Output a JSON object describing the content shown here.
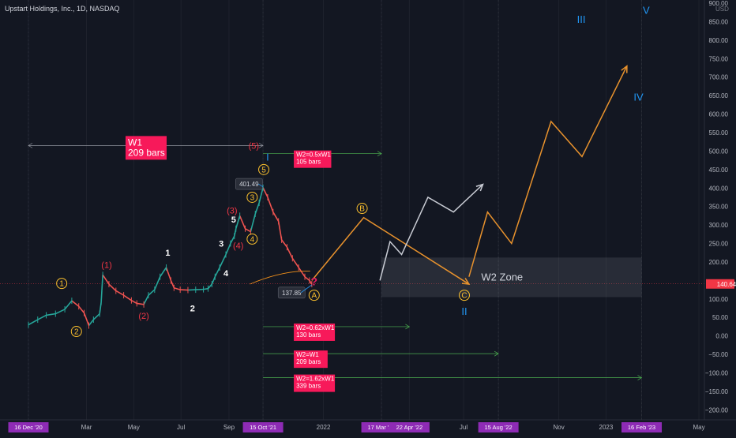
{
  "header": {
    "symbol_title": "Upstart Holdings, Inc., 1D, NASDAQ",
    "currency": "USD"
  },
  "chart_data": {
    "type": "line",
    "symbol": "Upstart Holdings, Inc.",
    "interval": "1D",
    "exchange": "NASDAQ",
    "current_price": "140.64",
    "y_axis": {
      "range": [
        -210,
        900
      ],
      "ticks": [
        {
          "v": 900,
          "label": "900.00"
        },
        {
          "v": 850,
          "label": "850.00"
        },
        {
          "v": 800,
          "label": "800.00"
        },
        {
          "v": 750,
          "label": "750.00"
        },
        {
          "v": 700,
          "label": "700.00"
        },
        {
          "v": 650,
          "label": "650.00"
        },
        {
          "v": 600,
          "label": "600.00"
        },
        {
          "v": 550,
          "label": "550.00"
        },
        {
          "v": 500,
          "label": "500.00"
        },
        {
          "v": 450,
          "label": "450.00"
        },
        {
          "v": 400,
          "label": "400.00"
        },
        {
          "v": 350,
          "label": "350.00"
        },
        {
          "v": 300,
          "label": "300.00"
        },
        {
          "v": 250,
          "label": "250.00"
        },
        {
          "v": 200,
          "label": "200.00"
        },
        {
          "v": 100,
          "label": "100.00"
        },
        {
          "v": 50,
          "label": "50.00"
        },
        {
          "v": 0,
          "label": "0.00"
        },
        {
          "v": -50,
          "label": "−50.00"
        },
        {
          "v": -100,
          "label": "−100.00"
        },
        {
          "v": -150,
          "label": "−150.00"
        },
        {
          "v": -200,
          "label": "−200.00"
        }
      ]
    },
    "x_axis": {
      "ticks": [
        {
          "d": "2020-12-16",
          "label": "16 Dec '20",
          "highlight": true
        },
        {
          "d": "2021-03-01",
          "label": "Mar"
        },
        {
          "d": "2021-05-01",
          "label": "May"
        },
        {
          "d": "2021-07-01",
          "label": "Jul"
        },
        {
          "d": "2021-09-01",
          "label": "Sep"
        },
        {
          "d": "2021-10-15",
          "label": "15 Oct '21",
          "highlight": true
        },
        {
          "d": "2022-01-01",
          "label": "2022"
        },
        {
          "d": "2022-03-17",
          "label": "17 Mar '22",
          "highlight": true
        },
        {
          "d": "2022-04-22",
          "label": "22 Apr '22",
          "highlight": true
        },
        {
          "d": "2022-07-01",
          "label": "Jul"
        },
        {
          "d": "2022-08-15",
          "label": "15 Aug '22",
          "highlight": true
        },
        {
          "d": "2022-11-01",
          "label": "Nov"
        },
        {
          "d": "2023-01-01",
          "label": "2023"
        },
        {
          "d": "2023-02-16",
          "label": "16 Feb '23",
          "highlight": true
        },
        {
          "d": "2023-05-01",
          "label": "May"
        }
      ]
    },
    "price_series": [
      [
        "2020-12-16",
        30
      ],
      [
        "2020-12-28",
        44
      ],
      [
        "2021-01-08",
        56
      ],
      [
        "2021-01-20",
        60
      ],
      [
        "2021-02-01",
        72
      ],
      [
        "2021-02-10",
        95
      ],
      [
        "2021-02-19",
        80
      ],
      [
        "2021-02-26",
        62
      ],
      [
        "2021-03-04",
        28
      ],
      [
        "2021-03-10",
        44
      ],
      [
        "2021-03-18",
        60
      ],
      [
        "2021-03-20",
        92
      ],
      [
        "2021-03-22",
        165
      ],
      [
        "2021-03-30",
        140
      ],
      [
        "2021-04-08",
        122
      ],
      [
        "2021-04-18",
        110
      ],
      [
        "2021-04-28",
        96
      ],
      [
        "2021-05-05",
        88
      ],
      [
        "2021-05-14",
        85
      ],
      [
        "2021-05-20",
        110
      ],
      [
        "2021-05-28",
        125
      ],
      [
        "2021-06-04",
        160
      ],
      [
        "2021-06-12",
        185
      ],
      [
        "2021-06-18",
        150
      ],
      [
        "2021-06-22",
        130
      ],
      [
        "2021-06-30",
        125
      ],
      [
        "2021-07-10",
        124
      ],
      [
        "2021-07-20",
        125
      ],
      [
        "2021-07-30",
        126
      ],
      [
        "2021-08-05",
        128
      ],
      [
        "2021-08-10",
        140
      ],
      [
        "2021-08-14",
        160
      ],
      [
        "2021-08-20",
        185
      ],
      [
        "2021-08-28",
        220
      ],
      [
        "2021-09-03",
        250
      ],
      [
        "2021-09-08",
        270
      ],
      [
        "2021-09-10",
        290
      ],
      [
        "2021-09-15",
        325
      ],
      [
        "2021-09-22",
        290
      ],
      [
        "2021-09-29",
        282
      ],
      [
        "2021-10-05",
        330
      ],
      [
        "2021-10-10",
        360
      ],
      [
        "2021-10-15",
        401
      ],
      [
        "2021-10-21",
        375
      ],
      [
        "2021-10-28",
        335
      ],
      [
        "2021-11-04",
        310
      ],
      [
        "2021-11-08",
        260
      ],
      [
        "2021-11-15",
        240
      ],
      [
        "2021-11-22",
        210
      ],
      [
        "2021-11-30",
        185
      ],
      [
        "2021-12-08",
        160
      ],
      [
        "2021-12-14",
        150
      ],
      [
        "2021-12-17",
        140
      ]
    ],
    "projection_orange": [
      [
        "2021-12-17",
        150
      ],
      [
        "2022-02-22",
        320
      ],
      [
        "2022-07-08",
        140
      ]
    ],
    "projection_white": [
      [
        "2022-03-15",
        150
      ],
      [
        "2022-03-28",
        255
      ],
      [
        "2022-04-12",
        220
      ],
      [
        "2022-05-16",
        375
      ],
      [
        "2022-06-18",
        335
      ],
      [
        "2022-07-26",
        410
      ]
    ],
    "projection_orange_2": [
      [
        "2022-07-08",
        160
      ],
      [
        "2022-08-01",
        335
      ],
      [
        "2022-09-01",
        250
      ],
      [
        "2022-10-22",
        580
      ],
      [
        "2022-12-01",
        485
      ],
      [
        "2023-01-28",
        730
      ]
    ],
    "w2_zone": {
      "label": "W2 Zone",
      "from": "2022-03-17",
      "to": "2023-02-16",
      "top": 212,
      "bottom": 105
    },
    "measures": [
      {
        "label": "W1\n209 bars",
        "from": "2020-12-16",
        "to": "2021-10-15",
        "y": 515,
        "big": true
      },
      {
        "label": "W2=0.5xW1\n105 bars",
        "from": "2021-10-15",
        "to": "2022-03-17",
        "y": 493
      },
      {
        "label": "W2=0.62xW1\n130 bars",
        "from": "2021-10-15",
        "to": "2022-04-22",
        "y": 25
      },
      {
        "label": "W2=W1\n209 bars",
        "from": "2021-10-15",
        "to": "2022-08-15",
        "y": -48
      },
      {
        "label": "W2=1.62xW1\n339 bars",
        "from": "2021-10-15",
        "to": "2023-02-16",
        "y": -113
      }
    ],
    "annotations": [
      {
        "text": "1",
        "d": "2021-01-28",
        "y": 142,
        "style": "circle"
      },
      {
        "text": "2",
        "d": "2021-02-16",
        "y": 12,
        "style": "circle"
      },
      {
        "text": "3",
        "d": "2021-10-01",
        "y": 375,
        "style": "circle"
      },
      {
        "text": "4",
        "d": "2021-10-01",
        "y": 262,
        "style": "circle"
      },
      {
        "text": "5",
        "d": "2021-10-16",
        "y": 450,
        "style": "circle"
      },
      {
        "text": "A",
        "d": "2021-12-20",
        "y": 110,
        "style": "circle"
      },
      {
        "text": "B",
        "d": "2022-02-20",
        "y": 345,
        "style": "circle"
      },
      {
        "text": "C",
        "d": "2022-07-02",
        "y": 110,
        "style": "circle"
      },
      {
        "text": "(1)",
        "d": "2021-03-27",
        "y": 192,
        "style": "red"
      },
      {
        "text": "(2)",
        "d": "2021-05-14",
        "y": 55,
        "style": "red"
      },
      {
        "text": "(3)",
        "d": "2021-09-05",
        "y": 340,
        "style": "red"
      },
      {
        "text": "(4)",
        "d": "2021-09-13",
        "y": 245,
        "style": "red"
      },
      {
        "text": "(5)",
        "d": "2021-10-03",
        "y": 515,
        "style": "red"
      },
      {
        "text": "1",
        "d": "2021-06-14",
        "y": 225,
        "style": "white"
      },
      {
        "text": "2",
        "d": "2021-07-16",
        "y": 75,
        "style": "white"
      },
      {
        "text": "3",
        "d": "2021-08-22",
        "y": 250,
        "style": "white"
      },
      {
        "text": "4",
        "d": "2021-08-28",
        "y": 170,
        "style": "white"
      },
      {
        "text": "5",
        "d": "2021-09-07",
        "y": 315,
        "style": "white"
      },
      {
        "text": "I",
        "d": "2021-10-21",
        "y": 483,
        "style": "blue"
      },
      {
        "text": "II",
        "d": "2022-07-02",
        "y": 65,
        "style": "blue"
      },
      {
        "text": "III",
        "d": "2022-11-30",
        "y": 855,
        "style": "blue"
      },
      {
        "text": "IV",
        "d": "2023-02-12",
        "y": 645,
        "style": "blue"
      },
      {
        "text": "V",
        "d": "2023-02-22",
        "y": 880,
        "style": "blue"
      },
      {
        "text": "?",
        "d": "2021-12-20",
        "y": 145,
        "style": "magenta"
      }
    ],
    "price_tags": [
      {
        "text": "401.49",
        "d": "2021-10-02",
        "y": 411
      },
      {
        "text": "137.85",
        "d": "2021-11-26",
        "y": 117
      }
    ]
  }
}
